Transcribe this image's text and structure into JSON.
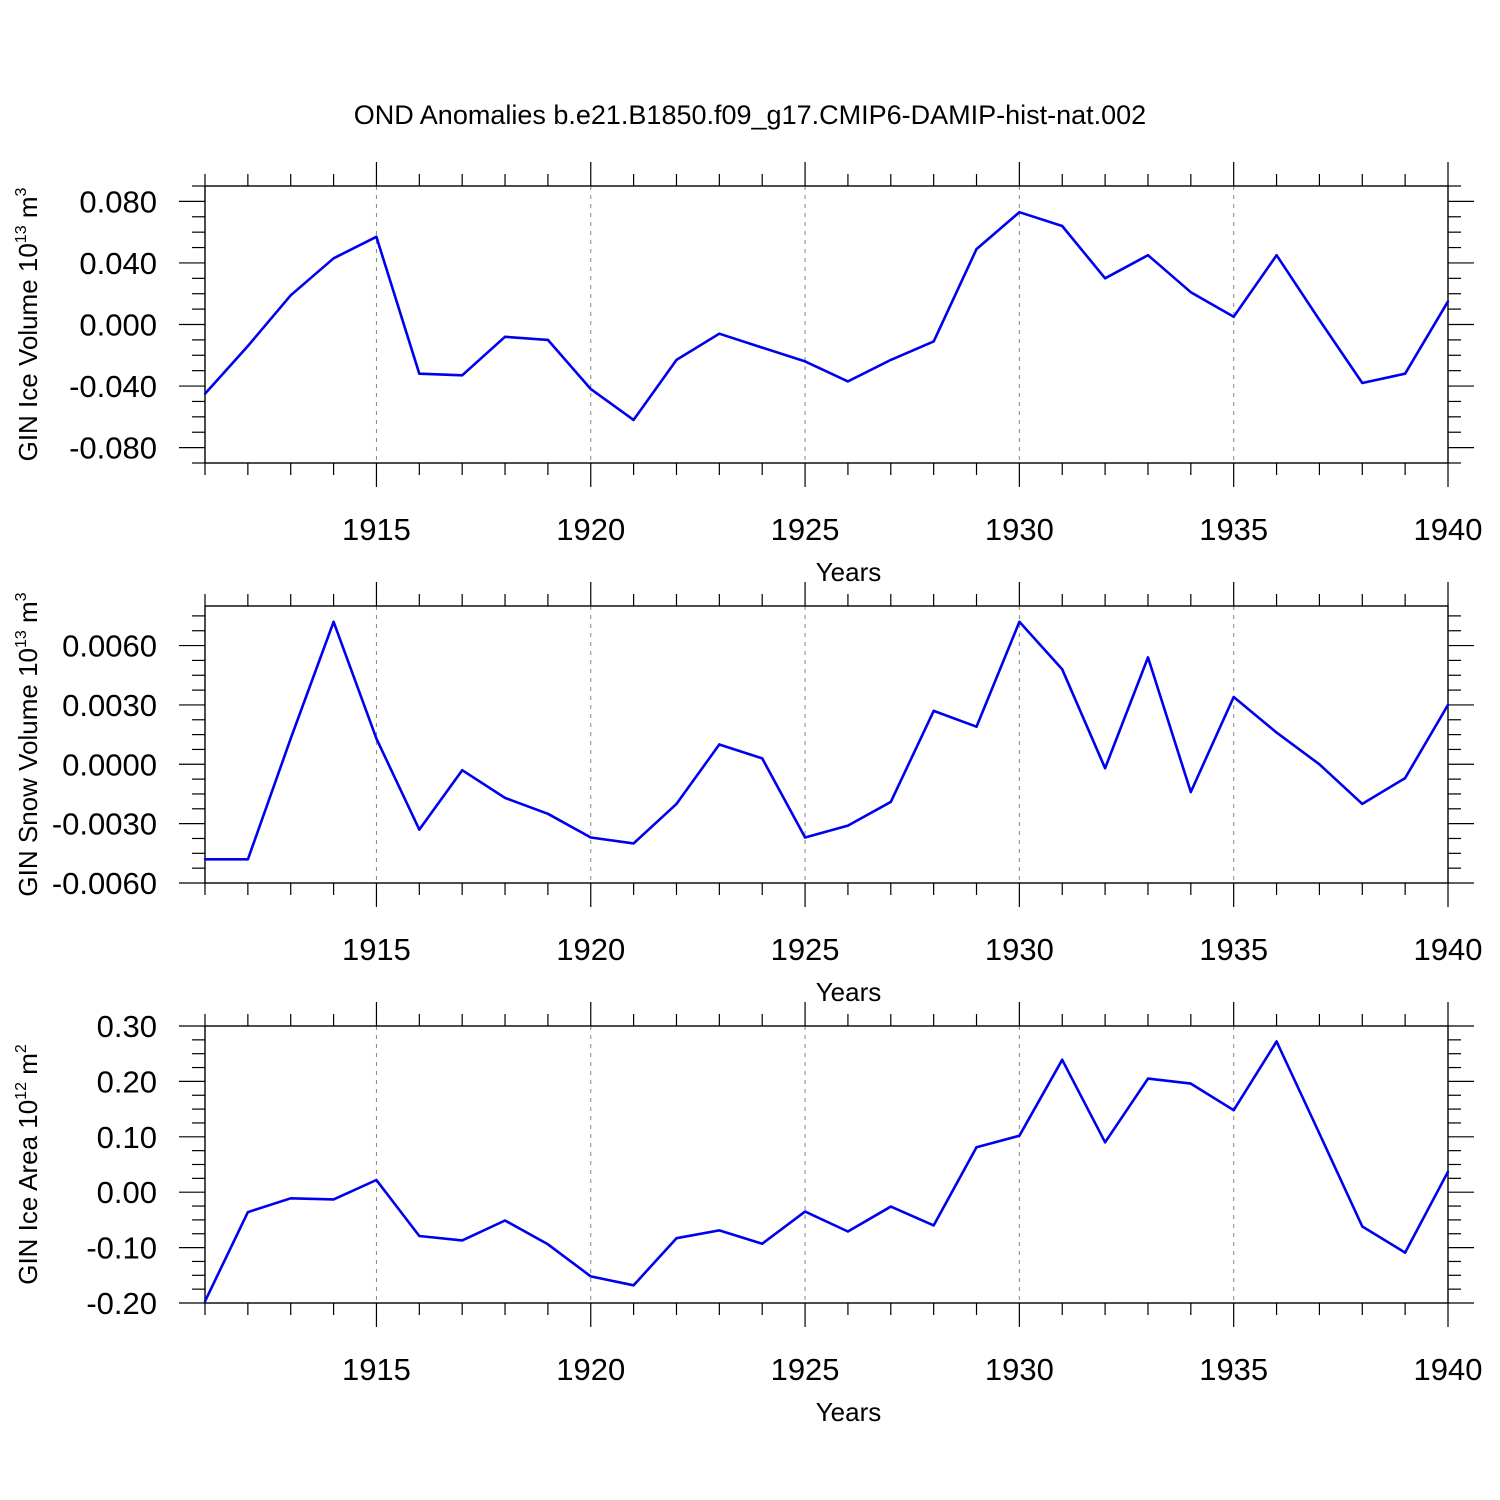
{
  "title": "OND Anomalies b.e21.B1850.f09_g17.CMIP6-DAMIP-hist-nat.002",
  "colors": {
    "line": "#0000ee",
    "axes": "#000000",
    "grid": "#888888"
  },
  "chart_data": [
    {
      "type": "line",
      "ylabel": {
        "main": "GIN Ice Volume 10",
        "sup": "13",
        "unit": " m",
        "unit_sup": "3"
      },
      "xlabel": "Years",
      "xlim": [
        1911,
        1940
      ],
      "ylim": [
        -0.09,
        0.09
      ],
      "xticks": [
        1915,
        1920,
        1925,
        1930,
        1935,
        1940
      ],
      "yticks": [
        -0.08,
        -0.04,
        0.0,
        0.04,
        0.08
      ],
      "ytick_labels": [
        "-0.080",
        "-0.040",
        "0.000",
        "0.040",
        "0.080"
      ],
      "grid": "vertical dashed at major x ticks",
      "series": [
        {
          "x": [
            1911,
            1912,
            1913,
            1914,
            1915,
            1916,
            1917,
            1918,
            1919,
            1920,
            1921,
            1922,
            1923,
            1924,
            1925,
            1926,
            1927,
            1928,
            1929,
            1930,
            1931,
            1932,
            1933,
            1934,
            1935,
            1936,
            1937,
            1938,
            1939,
            1940
          ],
          "values": [
            -0.045,
            -0.014,
            0.019,
            0.043,
            0.057,
            -0.032,
            -0.033,
            -0.008,
            -0.01,
            -0.042,
            -0.062,
            -0.023,
            -0.006,
            -0.015,
            -0.024,
            -0.037,
            -0.023,
            -0.011,
            0.049,
            0.073,
            0.064,
            0.03,
            0.045,
            0.021,
            0.005,
            0.045,
            0.003,
            -0.038,
            -0.032,
            0.015
          ]
        }
      ]
    },
    {
      "type": "line",
      "ylabel": {
        "main": "GIN Snow Volume 10",
        "sup": "13",
        "unit": " m",
        "unit_sup": "3"
      },
      "xlabel": "Years",
      "xlim": [
        1911,
        1940
      ],
      "ylim": [
        -0.006,
        0.008
      ],
      "xticks": [
        1915,
        1920,
        1925,
        1930,
        1935,
        1940
      ],
      "yticks": [
        -0.006,
        -0.003,
        0.0,
        0.003,
        0.006
      ],
      "ytick_labels": [
        "-0.0060",
        "-0.0030",
        "0.0000",
        "0.0030",
        "0.0060"
      ],
      "grid": "vertical dashed at major x ticks",
      "series": [
        {
          "x": [
            1911,
            1912,
            1913,
            1914,
            1915,
            1916,
            1917,
            1918,
            1919,
            1920,
            1921,
            1922,
            1923,
            1924,
            1925,
            1926,
            1927,
            1928,
            1929,
            1930,
            1931,
            1932,
            1933,
            1934,
            1935,
            1936,
            1937,
            1938,
            1939,
            1940
          ],
          "values": [
            -0.0048,
            -0.0048,
            0.0013,
            0.0072,
            0.0013,
            -0.0033,
            -0.0003,
            -0.0017,
            -0.0025,
            -0.0037,
            -0.004,
            -0.002,
            0.001,
            0.0003,
            -0.0037,
            -0.0031,
            -0.0019,
            0.0027,
            0.0019,
            0.0072,
            0.0048,
            -0.0002,
            0.0054,
            -0.0014,
            0.0034,
            0.0016,
            0.0,
            -0.002,
            -0.0007,
            0.003
          ]
        }
      ]
    },
    {
      "type": "line",
      "ylabel": {
        "main": "GIN Ice Area 10",
        "sup": "12",
        "unit": " m",
        "unit_sup": "2"
      },
      "xlabel": "Years",
      "xlim": [
        1911,
        1940
      ],
      "ylim": [
        -0.2,
        0.3
      ],
      "xticks": [
        1915,
        1920,
        1925,
        1930,
        1935,
        1940
      ],
      "yticks": [
        -0.2,
        -0.1,
        0.0,
        0.1,
        0.2,
        0.3
      ],
      "ytick_labels": [
        "-0.20",
        "-0.10",
        "0.00",
        "0.10",
        "0.20",
        "0.30"
      ],
      "grid": "vertical dashed at major x ticks",
      "series": [
        {
          "x": [
            1911,
            1912,
            1913,
            1914,
            1915,
            1916,
            1917,
            1918,
            1919,
            1920,
            1921,
            1922,
            1923,
            1924,
            1925,
            1926,
            1927,
            1928,
            1929,
            1930,
            1931,
            1932,
            1933,
            1934,
            1935,
            1936,
            1937,
            1938,
            1939,
            1940
          ],
          "values": [
            -0.197,
            -0.036,
            -0.011,
            -0.013,
            0.022,
            -0.079,
            -0.087,
            -0.051,
            -0.094,
            -0.152,
            -0.168,
            -0.083,
            -0.069,
            -0.093,
            -0.035,
            -0.071,
            -0.026,
            -0.06,
            0.081,
            0.102,
            0.239,
            0.09,
            0.205,
            0.196,
            0.148,
            0.272,
            0.106,
            -0.062,
            -0.109,
            0.037
          ]
        }
      ]
    }
  ]
}
